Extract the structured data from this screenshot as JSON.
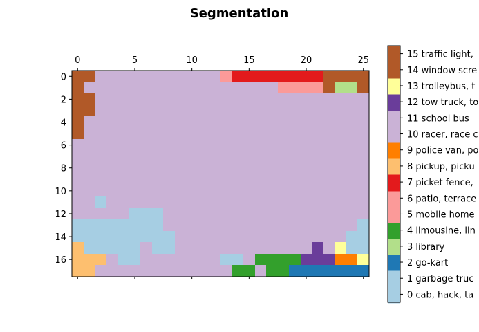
{
  "chart_data": {
    "type": "heatmap",
    "title": "Segmentation",
    "xlabel": "",
    "ylabel": "",
    "x_ticks": [
      "0",
      "5",
      "10",
      "15",
      "20",
      "25"
    ],
    "y_ticks": [
      "0",
      "2",
      "4",
      "6",
      "8",
      "10",
      "12",
      "14",
      "16"
    ],
    "xlim": [
      -0.5,
      25.5
    ],
    "ylim": [
      17.5,
      -0.5
    ],
    "grid": false,
    "x_ticks_position": "top-and-bottom",
    "colorbar": {
      "position": "right",
      "labels": [
        "0 cab, hack, ta",
        "1 garbage truc",
        "2 go-kart",
        "3 library",
        "4 limousine, lin",
        "5 mobile home",
        "6 patio, terrace",
        "7 picket fence,",
        "8 pickup, picku",
        "9 police van, po",
        "10 racer, race c",
        "11 school bus",
        "12 tow truck, to",
        "13 trolleybus, t",
        "14 window scre",
        "15 traffic light,"
      ],
      "colors": [
        "#a6cee3",
        "#a6cee3",
        "#1f78b4",
        "#b2df8a",
        "#33a02c",
        "#fb9a99",
        "#fb9a99",
        "#e31a1c",
        "#fdbf6f",
        "#ff7f00",
        "#cab2d6",
        "#cab2d6",
        "#6a3d9a",
        "#ffff99",
        "#b15928",
        "#b15928"
      ]
    },
    "grid_values": [
      [
        14,
        14,
        10,
        10,
        10,
        10,
        10,
        10,
        10,
        10,
        10,
        10,
        10,
        6,
        7,
        7,
        7,
        7,
        7,
        7,
        7,
        7,
        14,
        14,
        14,
        14
      ],
      [
        14,
        10,
        10,
        10,
        10,
        10,
        10,
        10,
        10,
        10,
        10,
        10,
        10,
        10,
        10,
        10,
        10,
        10,
        6,
        6,
        6,
        6,
        14,
        3,
        3,
        14
      ],
      [
        14,
        14,
        10,
        10,
        10,
        10,
        10,
        10,
        10,
        10,
        10,
        10,
        10,
        10,
        10,
        10,
        10,
        10,
        10,
        10,
        10,
        10,
        10,
        10,
        10,
        10
      ],
      [
        14,
        14,
        10,
        10,
        10,
        10,
        10,
        10,
        10,
        10,
        10,
        10,
        10,
        10,
        10,
        10,
        10,
        10,
        10,
        10,
        10,
        10,
        10,
        10,
        10,
        10
      ],
      [
        14,
        10,
        10,
        10,
        10,
        10,
        10,
        10,
        10,
        10,
        10,
        10,
        10,
        10,
        10,
        10,
        10,
        10,
        10,
        10,
        10,
        10,
        10,
        10,
        10,
        10
      ],
      [
        14,
        10,
        10,
        10,
        10,
        10,
        10,
        10,
        10,
        10,
        10,
        10,
        10,
        10,
        10,
        10,
        10,
        10,
        10,
        10,
        10,
        10,
        10,
        10,
        10,
        10
      ],
      [
        10,
        10,
        10,
        10,
        10,
        10,
        10,
        10,
        10,
        10,
        10,
        10,
        10,
        10,
        10,
        10,
        10,
        10,
        10,
        10,
        10,
        10,
        10,
        10,
        10,
        10
      ],
      [
        10,
        10,
        10,
        10,
        10,
        10,
        10,
        10,
        10,
        10,
        10,
        10,
        10,
        10,
        10,
        10,
        10,
        10,
        10,
        10,
        10,
        10,
        10,
        10,
        10,
        10
      ],
      [
        10,
        10,
        10,
        10,
        10,
        10,
        10,
        10,
        10,
        10,
        10,
        10,
        10,
        10,
        10,
        10,
        10,
        10,
        10,
        10,
        10,
        10,
        10,
        10,
        10,
        10
      ],
      [
        10,
        10,
        10,
        10,
        10,
        10,
        10,
        10,
        10,
        10,
        10,
        10,
        10,
        10,
        10,
        10,
        10,
        10,
        10,
        10,
        10,
        10,
        10,
        10,
        10,
        10
      ],
      [
        10,
        10,
        10,
        10,
        10,
        10,
        10,
        10,
        10,
        10,
        10,
        10,
        10,
        10,
        10,
        10,
        10,
        10,
        10,
        10,
        10,
        10,
        10,
        10,
        10,
        10
      ],
      [
        10,
        10,
        1,
        10,
        10,
        10,
        10,
        10,
        10,
        10,
        10,
        10,
        10,
        10,
        10,
        10,
        10,
        10,
        10,
        10,
        10,
        10,
        10,
        10,
        10,
        10
      ],
      [
        10,
        10,
        10,
        10,
        10,
        1,
        1,
        1,
        10,
        10,
        10,
        10,
        10,
        10,
        10,
        10,
        10,
        10,
        10,
        10,
        10,
        10,
        10,
        10,
        10,
        10
      ],
      [
        1,
        1,
        1,
        1,
        1,
        1,
        1,
        1,
        10,
        10,
        10,
        10,
        10,
        10,
        10,
        10,
        10,
        10,
        10,
        10,
        10,
        10,
        10,
        10,
        10,
        1
      ],
      [
        1,
        1,
        1,
        1,
        1,
        1,
        1,
        1,
        1,
        10,
        10,
        10,
        10,
        10,
        10,
        10,
        10,
        10,
        10,
        10,
        10,
        10,
        10,
        10,
        1,
        1
      ],
      [
        8,
        1,
        1,
        1,
        1,
        1,
        10,
        1,
        1,
        10,
        10,
        10,
        10,
        10,
        10,
        10,
        10,
        10,
        10,
        10,
        10,
        12,
        10,
        13,
        1,
        1
      ],
      [
        8,
        8,
        8,
        10,
        1,
        1,
        10,
        10,
        10,
        10,
        10,
        10,
        10,
        1,
        1,
        10,
        4,
        4,
        4,
        4,
        12,
        12,
        12,
        9,
        9,
        13
      ],
      [
        8,
        8,
        10,
        10,
        10,
        10,
        10,
        10,
        10,
        10,
        10,
        10,
        10,
        10,
        4,
        4,
        10,
        4,
        4,
        2,
        2,
        2,
        2,
        2,
        2,
        2
      ]
    ]
  }
}
